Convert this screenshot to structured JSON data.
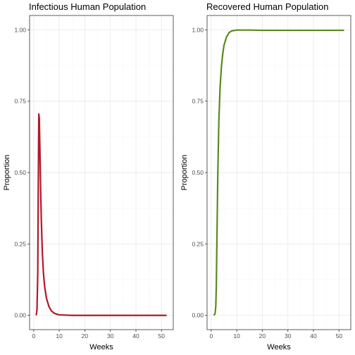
{
  "chart_data": [
    {
      "type": "line",
      "title": "Infectious Human Population",
      "xlabel": "Weeks",
      "ylabel": "Proportion",
      "xlim": [
        -1.6,
        54.6
      ],
      "ylim": [
        -0.05,
        1.05
      ],
      "x_ticks": [
        0,
        10,
        20,
        30,
        40,
        50
      ],
      "y_ticks": [
        0.0,
        0.25,
        0.5,
        0.75,
        1.0
      ],
      "x_tick_labels": [
        "0",
        "10",
        "20",
        "30",
        "40",
        "50"
      ],
      "y_tick_labels": [
        "0.00",
        "0.25",
        "0.50",
        "0.75",
        "1.00"
      ],
      "grid": true,
      "series": [
        {
          "color": "#b2182b",
          "x": [
            1,
            1.3,
            1.6,
            1.8,
            2.0,
            2.2,
            2.4,
            2.7,
            3.0,
            3.4,
            3.8,
            4.3,
            5,
            6,
            7,
            8,
            9,
            10,
            12,
            15,
            20,
            30,
            40,
            52
          ],
          "y": [
            0.0,
            0.02,
            0.15,
            0.45,
            0.705,
            0.69,
            0.6,
            0.45,
            0.33,
            0.22,
            0.15,
            0.1,
            0.06,
            0.03,
            0.015,
            0.008,
            0.004,
            0.002,
            0.001,
            0.0,
            0.0,
            0.0,
            0.0,
            0.0
          ]
        }
      ]
    },
    {
      "type": "line",
      "title": "Recovered Human Population",
      "xlabel": "Weeks",
      "ylabel": "Proportion",
      "xlim": [
        -1.6,
        54.6
      ],
      "ylim": [
        -0.05,
        1.05
      ],
      "x_ticks": [
        0,
        10,
        20,
        30,
        40,
        50
      ],
      "y_ticks": [
        0.0,
        0.25,
        0.5,
        0.75,
        1.0
      ],
      "x_tick_labels": [
        "0",
        "10",
        "20",
        "30",
        "40",
        "50"
      ],
      "y_tick_labels": [
        "0.00",
        "0.25",
        "0.50",
        "0.75",
        "1.00"
      ],
      "grid": true,
      "series": [
        {
          "color": "#5a8a1e",
          "x": [
            1,
            1.5,
            1.8,
            2.0,
            2.3,
            2.6,
            3.0,
            3.5,
            4.0,
            4.5,
            5.0,
            6.0,
            7.0,
            8.0,
            10.0,
            15,
            20,
            30,
            40,
            52
          ],
          "y": [
            0.0,
            0.005,
            0.03,
            0.1,
            0.3,
            0.5,
            0.68,
            0.8,
            0.87,
            0.915,
            0.945,
            0.975,
            0.99,
            0.996,
            0.999,
            0.999,
            0.998,
            0.998,
            0.998,
            0.998
          ]
        }
      ]
    }
  ]
}
